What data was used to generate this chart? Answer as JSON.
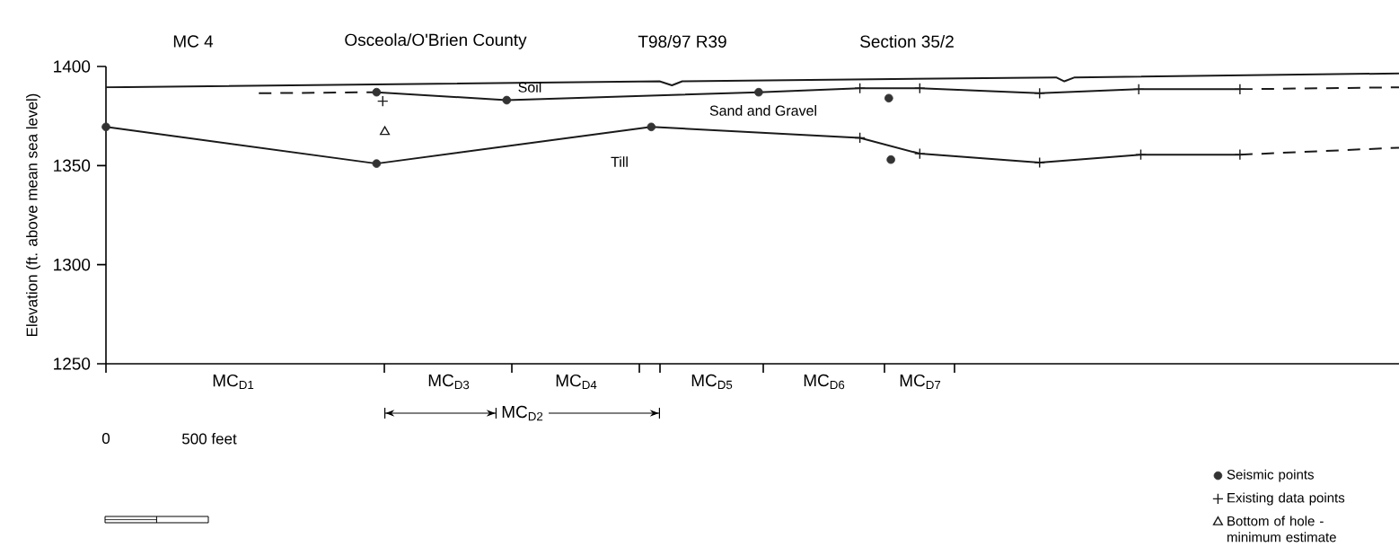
{
  "chart_data": {
    "type": "line",
    "title": "MC 4",
    "subtitle": "Osceola/O'Brien County",
    "ylabel": "Elevation (ft. above mean sea level)",
    "xlim": [
      0,
      6260
    ],
    "ylim": [
      1250,
      1400
    ],
    "yticks": [
      1250,
      1300,
      1350,
      1400
    ],
    "xticks": [
      {
        "value": 0,
        "label": "0"
      },
      {
        "value": 500,
        "label": "500 feet"
      }
    ],
    "legend": "bottom right",
    "series": [
      {
        "color": "#1a1a1a",
        "line_style": "solid",
        "marker": "none",
        "x": [
          0,
          2680,
          2740,
          2790,
          4600,
          4640,
          4690,
          6260
        ],
        "values": [
          1389.5,
          1392.5,
          1390.5,
          1392.5,
          1394.5,
          1392.5,
          1394.5,
          1396.5
        ]
      },
      {
        "color": "#1a1a1a",
        "line_style": "dashed",
        "marker": "none",
        "x": [
          740,
          1310
        ],
        "values": [
          1386.5,
          1387
        ]
      },
      {
        "color": "#1a1a1a",
        "line_style": "solid",
        "marker": "none",
        "x": [
          1310,
          1940,
          3160,
          3650,
          3940,
          4520,
          5000,
          5490
        ],
        "values": [
          1387,
          1383,
          1387,
          1389,
          1389,
          1386.5,
          1388.5,
          1388.5
        ]
      },
      {
        "color": "#1a1a1a",
        "line_style": "dashed",
        "marker": "none",
        "x": [
          5490,
          6260
        ],
        "values": [
          1388.5,
          1389.5
        ]
      },
      {
        "color": "#1a1a1a",
        "line_style": "solid",
        "marker": "none",
        "x": [
          0,
          1310,
          2640,
          3650,
          3940,
          4520,
          5010,
          5490
        ],
        "values": [
          1369.5,
          1351,
          1369.5,
          1364,
          1356,
          1351.5,
          1355.5,
          1355.5
        ]
      },
      {
        "color": "#1a1a1a",
        "line_style": "dashed",
        "marker": "none",
        "x": [
          5490,
          6260
        ],
        "values": [
          1355.5,
          1359
        ]
      },
      {
        "type": "scatter",
        "name": "Seismic points",
        "color": "#333333",
        "marker": "circle",
        "x": [
          1310,
          1940,
          3160,
          3790,
          0,
          1310,
          2640,
          3800
        ],
        "values": [
          1387,
          1383,
          1387,
          1384,
          1369.5,
          1351,
          1369.5,
          1353
        ]
      },
      {
        "type": "scatter",
        "name": "Existing data points",
        "color": "#1a1a1a",
        "marker": "cross",
        "x": [
          1340,
          3650,
          3940,
          4520,
          5000,
          5490,
          3650,
          3940,
          4520,
          5010,
          5490
        ],
        "values": [
          1382.5,
          1389,
          1389,
          1386.5,
          1388.5,
          1388.5,
          1364,
          1356,
          1351.5,
          1355.5,
          1355.5
        ]
      },
      {
        "type": "scatter",
        "name": "Bottom of hole - minimum estimate",
        "color": "#1a1a1a",
        "marker": "triangle",
        "x": [
          1350
        ],
        "values": [
          1367
        ]
      }
    ],
    "annotations": [
      "T98/97 R39",
      "Section 35/2",
      "Soil",
      "Sand and Gravel",
      "Till",
      "MC$_{D1}$",
      "MC$_{D3}$",
      "MC$_{D4}$",
      "MC$_{D5}$",
      "MC$_{D6}$",
      "MC$_{D7}$",
      "MC$_{D2}$"
    ]
  }
}
